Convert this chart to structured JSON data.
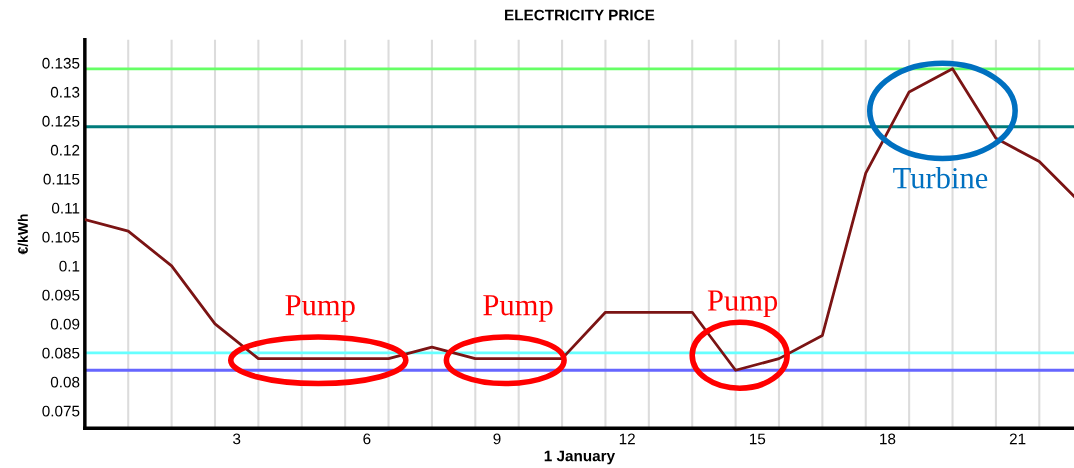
{
  "chart_data": {
    "type": "line",
    "title": "ELECTRICITY PRICE",
    "xlabel": "1 January",
    "ylabel": "€/kWh",
    "x": [
      -0.5,
      0.5,
      1.5,
      2.5,
      3.5,
      4.5,
      5.5,
      6.5,
      7.5,
      8.5,
      9.5,
      10.5,
      11.5,
      12.5,
      13.5,
      14.5,
      15.5,
      16.5,
      17.5,
      18.5,
      19.5,
      20.5,
      21.5,
      22.3
    ],
    "series": [
      {
        "color": "#7b1414",
        "values": [
          0.108,
          0.106,
          0.1,
          0.09,
          0.084,
          0.084,
          0.084,
          0.084,
          0.086,
          0.084,
          0.084,
          0.084,
          0.092,
          0.092,
          0.092,
          0.082,
          0.084,
          0.088,
          0.116,
          0.13,
          0.134,
          0.122,
          0.118,
          0.112
        ]
      }
    ],
    "xlim": [
      -0.5,
      22.3
    ],
    "xticks": [
      3,
      6,
      9,
      12,
      15,
      18,
      21
    ],
    "ylim": [
      0.072,
      0.139
    ],
    "yticks": [
      0.075,
      0.08,
      0.085,
      0.09,
      0.095,
      0.1,
      0.105,
      0.11,
      0.115,
      0.12,
      0.125,
      0.13,
      0.135
    ],
    "ref_lines": [
      {
        "axis": "y",
        "value": 0.134,
        "color": "#66ff66"
      },
      {
        "axis": "y",
        "value": 0.124,
        "color": "#007b7b"
      },
      {
        "axis": "y",
        "value": 0.085,
        "color": "#66ffff"
      },
      {
        "axis": "y",
        "value": 0.082,
        "color": "#6666ff"
      }
    ],
    "annotations": [
      "Pump",
      "Pump",
      "Pump",
      "Turbine"
    ],
    "grid": "x",
    "legend": false,
    "marker": "none",
    "line_style": "solid"
  }
}
